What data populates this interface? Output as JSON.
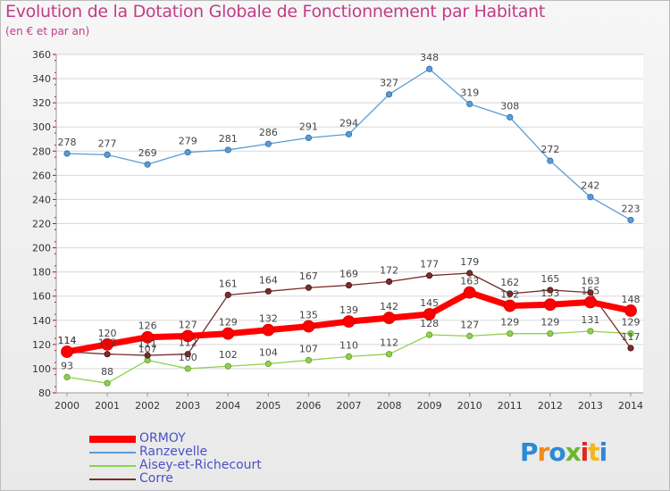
{
  "title": "Evolution de la Dotation Globale de Fonctionnement par Habitant",
  "subtitle": "(en € et par an)",
  "logo": {
    "text": "Proxiti",
    "colors": [
      "#2a8ad6",
      "#f08a1c",
      "#2a8ad6",
      "#6ab82c",
      "#e0271c",
      "#f0b81c",
      "#2a8ad6"
    ]
  },
  "chart_data": {
    "type": "line",
    "title": "Evolution de la Dotation Globale de Fonctionnement par Habitant",
    "subtitle": "(en € et par an)",
    "x": [
      "2000",
      "2001",
      "2002",
      "2003",
      "2004",
      "2005",
      "2006",
      "2007",
      "2008",
      "2009",
      "2010",
      "2011",
      "2012",
      "2013",
      "2014"
    ],
    "ylim": [
      80,
      360
    ],
    "yticks": [
      80,
      100,
      120,
      140,
      160,
      180,
      200,
      220,
      240,
      260,
      280,
      300,
      320,
      340,
      360
    ],
    "grid": "horizontal",
    "legend": "bottom-left",
    "series": [
      {
        "name": "ORMOY",
        "color": "#ff0000",
        "values": [
          114,
          120,
          126,
          127,
          129,
          132,
          135,
          139,
          142,
          145,
          163,
          152,
          153,
          155,
          148
        ],
        "labels": [
          "114",
          "120",
          "126",
          "127",
          "129",
          "132",
          "135",
          "139",
          "142",
          "145",
          "163",
          "152",
          "153",
          "155",
          "148"
        ]
      },
      {
        "name": "Ranzevelle",
        "color": "#5b9bd5",
        "values": [
          278,
          277,
          269,
          279,
          281,
          286,
          291,
          294,
          327,
          348,
          319,
          308,
          272,
          242,
          223
        ],
        "labels": [
          "278",
          "277",
          "269",
          "279",
          "281",
          "286",
          "291",
          "294",
          "327",
          "348",
          "319",
          "308",
          "272",
          "242",
          "223"
        ]
      },
      {
        "name": "Aisey-et-Richecourt",
        "color": "#8fd14f",
        "values": [
          93,
          88,
          107,
          100,
          102,
          104,
          107,
          110,
          112,
          128,
          127,
          129,
          129,
          131,
          129
        ],
        "labels": [
          "93",
          "88",
          "107",
          "100",
          "102",
          "104",
          "107",
          "110",
          "112",
          "128",
          "127",
          "129",
          "129",
          "131",
          "129"
        ]
      },
      {
        "name": "Corre",
        "color": "#7b2c2c",
        "values": [
          114,
          112,
          111,
          112,
          161,
          164,
          167,
          169,
          172,
          177,
          179,
          162,
          165,
          163,
          117
        ],
        "labels": [
          "114",
          "112",
          "111",
          "112",
          "161",
          "164",
          "167",
          "169",
          "172",
          "177",
          "179",
          "162",
          "165",
          "163",
          "117"
        ]
      }
    ]
  }
}
